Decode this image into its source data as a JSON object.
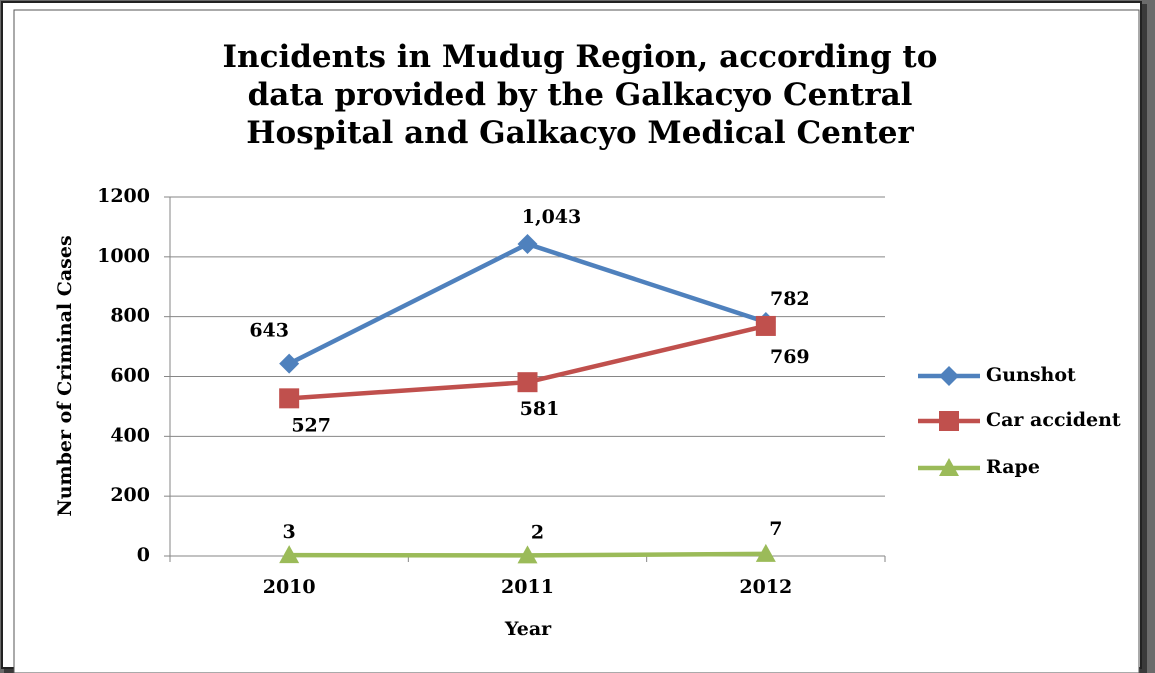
{
  "chart_data": {
    "type": "line",
    "title": "Incidents in Mudug Region, according to data provided by the Galkacyo Central Hospital and Galkacyo Medical Center",
    "x_label": "Year",
    "y_label": "Number of Criminal Cases",
    "categories": [
      "2010",
      "2011",
      "2012"
    ],
    "series": [
      {
        "name": "Gunshot",
        "color": "#4f81bd",
        "marker": "diamond",
        "values": [
          643,
          1043,
          782
        ],
        "value_labels": [
          "643",
          "1,043",
          "782"
        ]
      },
      {
        "name": "Car accident",
        "color": "#c0504d",
        "marker": "square",
        "values": [
          527,
          581,
          769
        ]
      },
      {
        "name": "Rape",
        "color": "#9bbb59",
        "marker": "triangle",
        "values": [
          3,
          2,
          7
        ]
      }
    ],
    "ylim": [
      0,
      1200
    ],
    "yticks": [
      0,
      200,
      400,
      600,
      800,
      1000,
      1200
    ],
    "grid": true,
    "legend": "right"
  }
}
